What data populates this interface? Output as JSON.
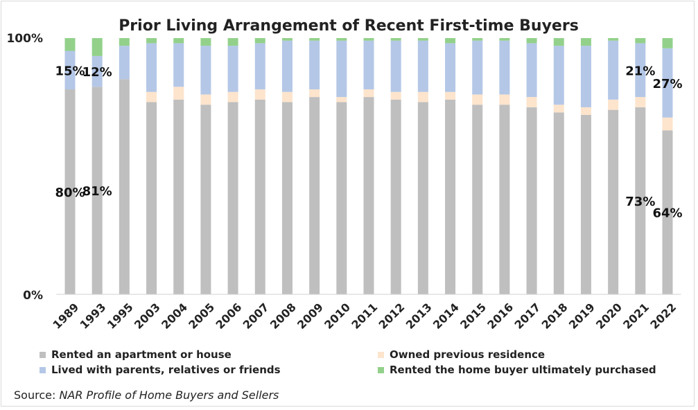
{
  "chart_data": {
    "type": "bar",
    "stacked": true,
    "percent_stacked": true,
    "title": "Prior Living Arrangement of Recent First-time Buyers",
    "source_label": "Source:",
    "source_text": "NAR Profile of Home Buyers and Sellers",
    "categories": [
      "1989",
      "1993",
      "1995",
      "2003",
      "2004",
      "2005",
      "2006",
      "2007",
      "2008",
      "2009",
      "2010",
      "2011",
      "2012",
      "2013",
      "2014",
      "2015",
      "2016",
      "2017",
      "2018",
      "2019",
      "2020",
      "2021",
      "2022"
    ],
    "y_tick_labels": [
      "100%",
      "0%"
    ],
    "ylim": [
      0,
      100
    ],
    "legend_position": "bottom",
    "series": [
      {
        "name": "Rented an apartment or house",
        "color": "#bfbfbf",
        "values": [
          80,
          81,
          84,
          75,
          76,
          74,
          75,
          76,
          75,
          77,
          75,
          77,
          76,
          75,
          76,
          74,
          74,
          73,
          71,
          70,
          72,
          73,
          64
        ]
      },
      {
        "name": "Owned previous residence",
        "color": "#fde4cc",
        "values": [
          0,
          0,
          0,
          4,
          5,
          4,
          4,
          4,
          4,
          3,
          2,
          3,
          3,
          4,
          3,
          4,
          4,
          4,
          3,
          3,
          4,
          4,
          5
        ]
      },
      {
        "name": "Lived with parents, relatives or friends",
        "color": "#b4c7e7",
        "values": [
          15,
          12,
          13,
          19,
          17,
          19,
          18,
          18,
          20,
          19,
          22,
          19,
          20,
          20,
          19,
          21,
          21,
          21,
          23,
          24,
          23,
          21,
          27
        ]
      },
      {
        "name": "Rented the home buyer ultimately purchased",
        "color": "#93d18b",
        "values": [
          5,
          7,
          3,
          2,
          2,
          3,
          3,
          2,
          1,
          1,
          1,
          1,
          1,
          1,
          2,
          1,
          1,
          2,
          3,
          3,
          1,
          2,
          4
        ]
      }
    ],
    "data_labels": [
      {
        "category": "1989",
        "series": "Rented an apartment or house",
        "text": "80%"
      },
      {
        "category": "1993",
        "series": "Rented an apartment or house",
        "text": "81%"
      },
      {
        "category": "1989",
        "series": "Lived with parents, relatives or friends",
        "text": "15%"
      },
      {
        "category": "1993",
        "series": "Lived with parents, relatives or friends",
        "text": "12%"
      },
      {
        "category": "2021",
        "series": "Rented an apartment or house",
        "text": "73%"
      },
      {
        "category": "2022",
        "series": "Rented an apartment or house",
        "text": "64%"
      },
      {
        "category": "2021",
        "series": "Lived with parents, relatives or friends",
        "text": "21%"
      },
      {
        "category": "2022",
        "series": "Lived with parents, relatives or friends",
        "text": "27%"
      }
    ]
  }
}
